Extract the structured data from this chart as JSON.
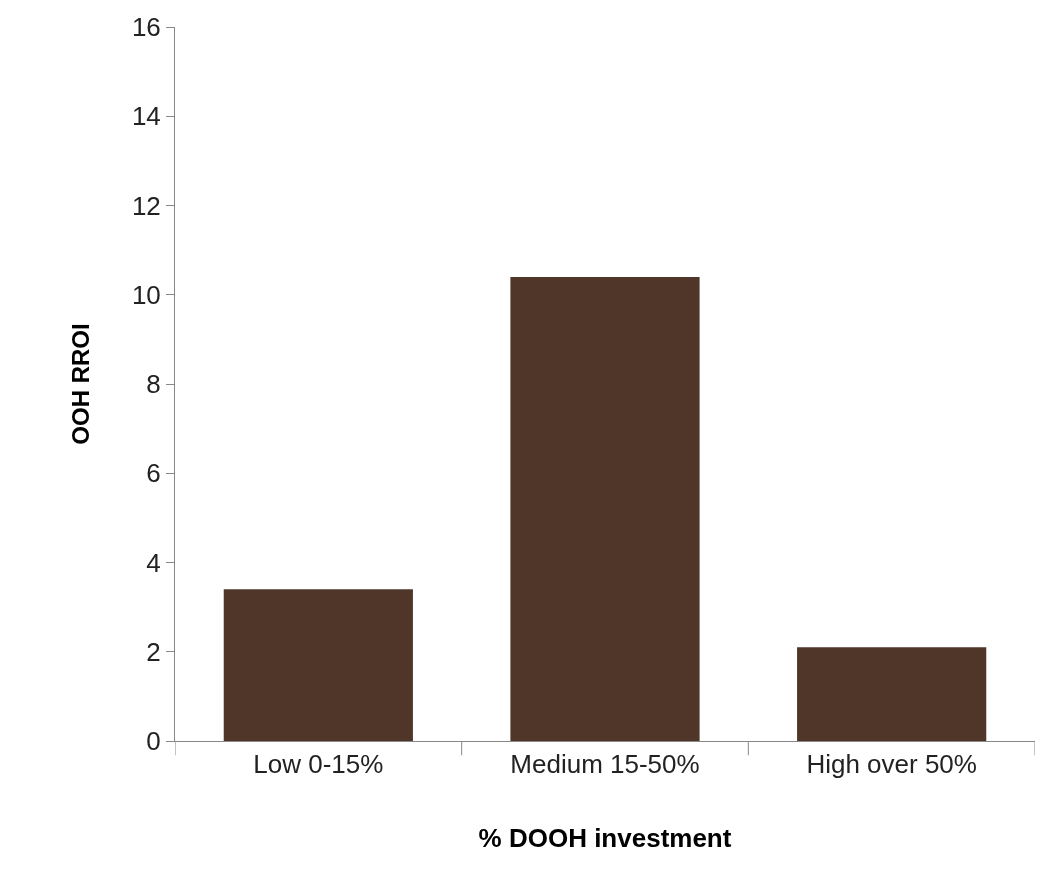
{
  "chart_data": {
    "type": "bar",
    "xlabel": "% DOOH investment",
    "ylabel": "OOH RROI",
    "categories": [
      "Low 0-15%",
      "Medium 15-50%",
      "High over 50%"
    ],
    "values": [
      3.4,
      10.4,
      2.1
    ],
    "color": "#4f3629",
    "ylim": [
      0,
      16
    ],
    "yticks": [
      0,
      2,
      4,
      6,
      8,
      10,
      12,
      14,
      16
    ],
    "grid": false
  }
}
